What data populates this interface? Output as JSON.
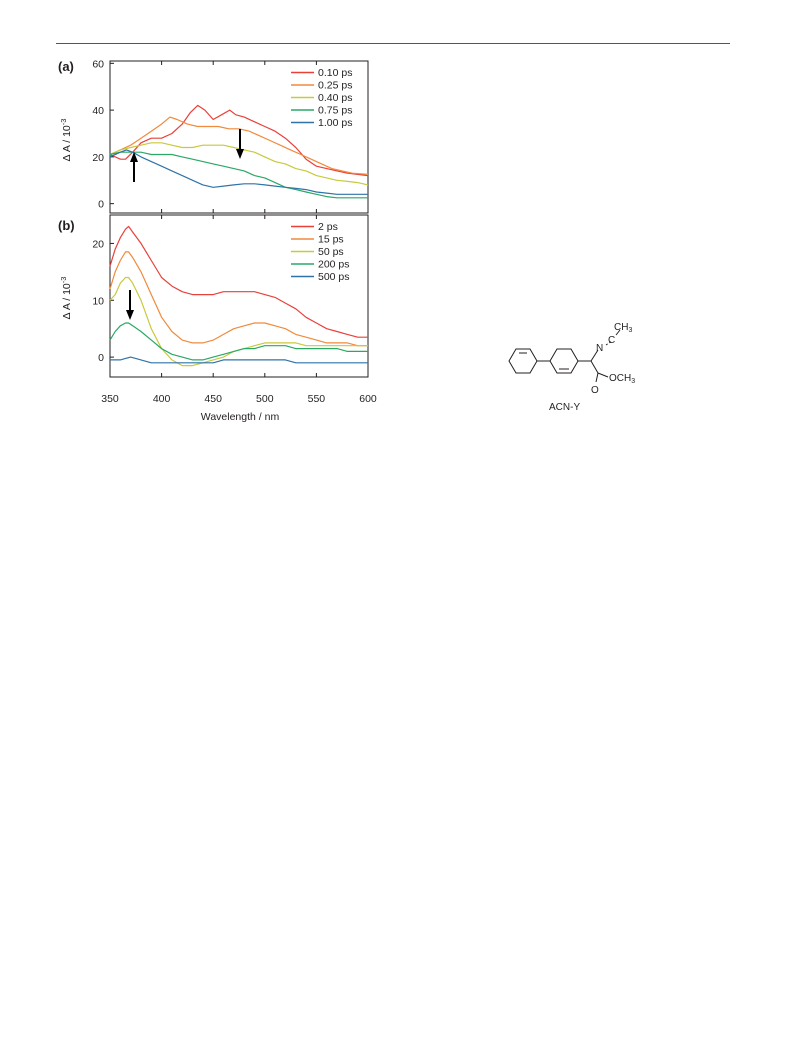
{
  "figure": {
    "panels": [
      {
        "label": "(a)",
        "ylabel_main": "Δ A / 10",
        "ylabel_exp": "-3",
        "yticks": [
          "0",
          "20",
          "40",
          "60"
        ],
        "legend": [
          "0.10 ps",
          "0.25 ps",
          "0.40 ps",
          "0.75 ps",
          "1.00 ps"
        ]
      },
      {
        "label": "(b)",
        "ylabel_main": "Δ A / 10",
        "ylabel_exp": "-3",
        "yticks": [
          "0",
          "10",
          "20"
        ],
        "legend": [
          "2 ps",
          "15 ps",
          "50 ps",
          "200 ps",
          "500 ps"
        ]
      }
    ],
    "xlabel": "Wavelength / nm",
    "xticks": [
      "350",
      "400",
      "450",
      "500",
      "550",
      "600"
    ]
  },
  "chart_data": [
    {
      "type": "line",
      "panel": "(a)",
      "xlabel": "Wavelength / nm",
      "ylabel": "Δ A / 10-3",
      "xlim": [
        350,
        600
      ],
      "ylim": [
        -4,
        61
      ],
      "series": [
        {
          "name": "0.10 ps",
          "color": "#e8413a",
          "x": [
            350,
            360,
            365,
            372,
            380,
            390,
            400,
            410,
            420,
            428,
            435,
            442,
            450,
            458,
            466,
            472,
            480,
            490,
            500,
            510,
            520,
            530,
            540,
            550,
            560,
            570,
            580,
            590,
            600
          ],
          "values": [
            21,
            19,
            19,
            22,
            26,
            28,
            28,
            30,
            34,
            39,
            42,
            40,
            36,
            38,
            40,
            38,
            37,
            35,
            33,
            31,
            28,
            24,
            19,
            16,
            15,
            14,
            13,
            12.5,
            12
          ]
        },
        {
          "name": "0.25 ps",
          "color": "#f08a3c",
          "x": [
            350,
            360,
            370,
            380,
            390,
            400,
            408,
            415,
            425,
            435,
            445,
            455,
            465,
            475,
            485,
            495,
            505,
            515,
            525,
            535,
            545,
            555,
            565,
            575,
            585,
            600
          ],
          "values": [
            21,
            23,
            25,
            28,
            31,
            34,
            37,
            36,
            34,
            33,
            33,
            33,
            32,
            32,
            31,
            29,
            27,
            25,
            23,
            21,
            19,
            17,
            15,
            14,
            13,
            12.5
          ]
        },
        {
          "name": "0.40 ps",
          "color": "#c8c93c",
          "x": [
            350,
            360,
            370,
            380,
            390,
            400,
            410,
            420,
            430,
            440,
            450,
            460,
            470,
            480,
            490,
            500,
            510,
            520,
            530,
            540,
            550,
            560,
            570,
            580,
            590,
            600
          ],
          "values": [
            21,
            23,
            24,
            25,
            26,
            26,
            25,
            24,
            24,
            25,
            25,
            25,
            24,
            23,
            22,
            20,
            18,
            17,
            15,
            14,
            12,
            11,
            10,
            9.5,
            9,
            8
          ]
        },
        {
          "name": "0.75 ps",
          "color": "#2aa865",
          "x": [
            350,
            360,
            370,
            380,
            390,
            400,
            410,
            420,
            430,
            440,
            450,
            460,
            470,
            480,
            490,
            500,
            510,
            520,
            530,
            540,
            550,
            560,
            570,
            580,
            590,
            600
          ],
          "values": [
            21,
            22,
            22,
            22,
            21,
            21,
            21,
            20,
            19,
            18,
            17,
            16,
            15,
            14,
            12,
            11,
            9,
            7,
            6,
            5,
            4,
            3,
            2.5,
            2.5,
            2.5,
            2.5
          ]
        },
        {
          "name": "1.00 ps",
          "color": "#2f73a8",
          "x": [
            350,
            360,
            366,
            372,
            380,
            390,
            400,
            410,
            420,
            430,
            440,
            450,
            460,
            470,
            480,
            490,
            500,
            510,
            520,
            530,
            540,
            550,
            560,
            570,
            580,
            590,
            600
          ],
          "values": [
            20,
            22,
            23,
            22,
            20,
            18,
            16,
            14,
            12,
            10,
            8,
            7,
            7.5,
            8,
            8.5,
            8.5,
            8,
            7.5,
            7,
            6.5,
            6,
            5,
            4.5,
            4,
            4,
            4,
            4
          ]
        }
      ]
    },
    {
      "type": "line",
      "panel": "(b)",
      "xlabel": "Wavelength / nm",
      "ylabel": "Δ A / 10-3",
      "xlim": [
        350,
        600
      ],
      "ylim": [
        -3.5,
        25
      ],
      "series": [
        {
          "name": "2 ps",
          "color": "#e8413a",
          "x": [
            350,
            355,
            360,
            365,
            368,
            372,
            380,
            390,
            400,
            410,
            420,
            430,
            440,
            450,
            460,
            470,
            480,
            490,
            500,
            510,
            520,
            530,
            540,
            550,
            560,
            570,
            580,
            590,
            600
          ],
          "values": [
            16,
            19,
            21,
            22.5,
            23,
            22,
            20,
            17,
            14,
            12.5,
            11.5,
            11,
            11,
            11,
            11.5,
            11.5,
            11.5,
            11.5,
            11,
            10.5,
            9.5,
            8.5,
            7,
            6,
            5,
            4.5,
            4,
            3.5,
            3.5
          ]
        },
        {
          "name": "15 ps",
          "color": "#f08a3c",
          "x": [
            350,
            355,
            360,
            365,
            368,
            372,
            380,
            390,
            400,
            410,
            420,
            430,
            440,
            450,
            460,
            470,
            480,
            490,
            500,
            510,
            520,
            530,
            540,
            550,
            560,
            570,
            580,
            590,
            600
          ],
          "values": [
            12,
            15,
            17,
            18.5,
            18.5,
            17.5,
            15,
            11,
            7,
            4.5,
            3,
            2.5,
            2.5,
            3,
            4,
            5,
            5.5,
            6,
            6,
            5.5,
            5,
            4,
            3.5,
            3,
            2.5,
            2.5,
            2.5,
            2,
            2
          ]
        },
        {
          "name": "50 ps",
          "color": "#c8c93c",
          "x": [
            350,
            355,
            360,
            365,
            368,
            372,
            380,
            390,
            400,
            410,
            420,
            430,
            440,
            450,
            460,
            470,
            480,
            490,
            500,
            510,
            520,
            530,
            540,
            550,
            560,
            570,
            580,
            590,
            600
          ],
          "values": [
            10,
            11,
            13,
            14,
            14,
            13,
            10,
            5,
            1.5,
            -0.5,
            -1.5,
            -1.5,
            -1,
            -0.5,
            0,
            1,
            1.5,
            2,
            2.5,
            2.5,
            2.5,
            2.5,
            2,
            2,
            2,
            2,
            2,
            2,
            2
          ]
        },
        {
          "name": "200 ps",
          "color": "#2aa865",
          "x": [
            350,
            355,
            360,
            365,
            368,
            372,
            380,
            390,
            400,
            410,
            420,
            430,
            440,
            450,
            460,
            470,
            480,
            490,
            500,
            510,
            520,
            530,
            540,
            550,
            560,
            570,
            580,
            590,
            600
          ],
          "values": [
            3,
            4.5,
            5.5,
            6,
            6,
            5.5,
            4.5,
            3,
            1.5,
            0.5,
            0,
            -0.5,
            -0.5,
            0,
            0.5,
            1,
            1.5,
            1.5,
            2,
            2,
            2,
            1.5,
            1.5,
            1.5,
            1.5,
            1.5,
            1,
            1,
            1
          ]
        },
        {
          "name": "500 ps",
          "color": "#2f73a8",
          "x": [
            350,
            360,
            370,
            380,
            390,
            400,
            410,
            420,
            430,
            440,
            450,
            460,
            470,
            480,
            490,
            500,
            510,
            520,
            530,
            540,
            550,
            560,
            570,
            580,
            590,
            600
          ],
          "values": [
            -0.5,
            -0.5,
            0,
            -0.5,
            -1,
            -1,
            -1,
            -1,
            -1,
            -1,
            -1,
            -0.5,
            -0.5,
            -0.5,
            -0.5,
            -0.5,
            -0.5,
            -0.5,
            -1,
            -1,
            -1,
            -1,
            -1,
            -1,
            -1,
            -1
          ]
        }
      ]
    }
  ],
  "molecule": {
    "name": "ACN-Y",
    "n_label": "N",
    "c_label": "C",
    "ch3_main": "CH",
    "ch3_sub": "3",
    "o_label": "O",
    "och3_main": "OCH",
    "och3_sub": "3"
  }
}
